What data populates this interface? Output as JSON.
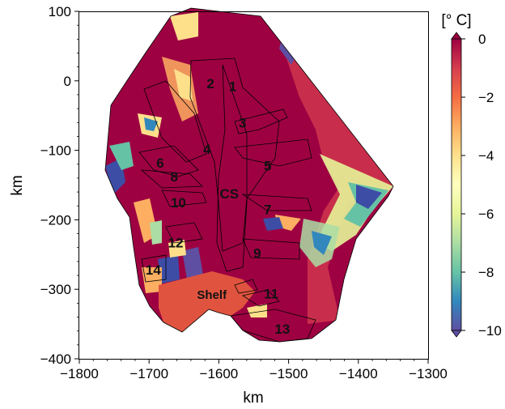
{
  "chart_data": {
    "type": "heatmap",
    "title": "",
    "xlabel": "km",
    "ylabel": "km",
    "xlim": [
      -1800,
      -1300
    ],
    "ylim": [
      -400,
      100
    ],
    "x_ticks": [
      -1800,
      -1700,
      -1600,
      -1500,
      -1400,
      -1300
    ],
    "x_tick_labels": [
      "−1800",
      "−1700",
      "−1600",
      "−1500",
      "−1400",
      "−1300"
    ],
    "y_ticks": [
      100,
      0,
      -100,
      -200,
      -300,
      -400
    ],
    "y_tick_labels": [
      "100",
      "0",
      "−100",
      "−200",
      "−300",
      "−400"
    ],
    "colorbar": {
      "title": "[° C]",
      "range": [
        -10,
        0
      ],
      "ticks": [
        0,
        -2,
        -4,
        -6,
        -8,
        -10
      ],
      "tick_labels": [
        "0",
        "−2",
        "−4",
        "−6",
        "−8",
        "−10"
      ],
      "colormap": "Spectral",
      "extend": "both"
    },
    "region_labels": [
      {
        "text": "1",
        "x": -1580,
        "y": -8
      },
      {
        "text": "2",
        "x": -1612,
        "y": -4
      },
      {
        "text": "3",
        "x": -1566,
        "y": -60
      },
      {
        "text": "4",
        "x": -1617,
        "y": -98
      },
      {
        "text": "5",
        "x": -1530,
        "y": -122
      },
      {
        "text": "6",
        "x": -1684,
        "y": -118
      },
      {
        "text": "8",
        "x": -1664,
        "y": -138
      },
      {
        "text": "CS",
        "x": -1585,
        "y": -162
      },
      {
        "text": "10",
        "x": -1658,
        "y": -175
      },
      {
        "text": "7",
        "x": -1530,
        "y": -185
      },
      {
        "text": "12",
        "x": -1662,
        "y": -233
      },
      {
        "text": "9",
        "x": -1545,
        "y": -248
      },
      {
        "text": "14",
        "x": -1694,
        "y": -272
      },
      {
        "text": "Shelf",
        "x": -1610,
        "y": -307
      },
      {
        "text": "11",
        "x": -1525,
        "y": -306
      },
      {
        "text": "13",
        "x": -1509,
        "y": -357
      }
    ],
    "colors": {
      "dominant_warm": "#9e0142",
      "shelf": "#e0543f",
      "cold": "#3d4da6",
      "mid": "#fee08b"
    }
  }
}
